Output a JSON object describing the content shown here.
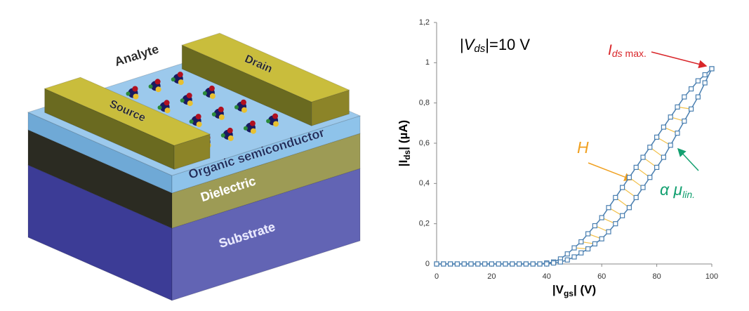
{
  "diagram": {
    "labels": {
      "analyte": "Analyte",
      "drain": "Drain",
      "source": "Source",
      "semiconductor": "Organic semiconductor",
      "dielectric": "Dielectric",
      "substrate": "Substrate"
    }
  },
  "chart_data": {
    "type": "line",
    "marker": "square",
    "x": [
      0,
      2.5,
      5,
      7.5,
      10,
      12.5,
      15,
      17.5,
      20,
      22.5,
      25,
      27.5,
      30,
      32.5,
      35,
      37.5,
      40,
      42.5,
      45,
      47.5,
      50,
      52.5,
      55,
      57.5,
      60,
      62.5,
      65,
      67.5,
      70,
      72.5,
      75,
      77.5,
      80,
      82.5,
      85,
      87.5,
      90,
      92.5,
      95,
      97.5,
      100
    ],
    "series": [
      {
        "color": "#4a7fb0",
        "values": [
          0,
          0,
          0,
          0,
          0,
          0,
          0,
          0,
          0,
          0,
          0,
          0,
          0,
          0,
          0,
          0,
          0.005,
          0.01,
          0.025,
          0.05,
          0.08,
          0.11,
          0.15,
          0.19,
          0.23,
          0.28,
          0.33,
          0.38,
          0.43,
          0.48,
          0.53,
          0.58,
          0.63,
          0.68,
          0.73,
          0.78,
          0.83,
          0.87,
          0.91,
          0.94,
          0.97
        ]
      },
      {
        "color": "#4a7fb0",
        "values": [
          0,
          0,
          0,
          0,
          0,
          0,
          0,
          0,
          0,
          0,
          0,
          0,
          0,
          0,
          0,
          0,
          0,
          0.005,
          0.01,
          0.02,
          0.035,
          0.055,
          0.075,
          0.1,
          0.125,
          0.16,
          0.2,
          0.24,
          0.28,
          0.33,
          0.38,
          0.43,
          0.48,
          0.53,
          0.59,
          0.65,
          0.71,
          0.77,
          0.83,
          0.9,
          0.97
        ]
      }
    ],
    "hatch_color": "#f2c04a",
    "xlim": [
      0,
      100
    ],
    "xticks": [
      0,
      20,
      40,
      60,
      80,
      100
    ],
    "ylim": [
      0,
      1.2
    ],
    "yticks": [
      0,
      {
        "value": 0.2,
        "label": "0,2"
      },
      {
        "value": 0.4,
        "label": "0,4"
      },
      {
        "value": 0.6,
        "label": "0,6"
      },
      {
        "value": 0.8,
        "label": "0,8"
      },
      1,
      {
        "value": 1.2,
        "label": "1,2"
      }
    ],
    "xlabel": {
      "pre": "|V",
      "sub": "gs",
      "post": "| (V)"
    },
    "ylabel": {
      "pre": "|I",
      "sub": "ds",
      "post": "| (µA)"
    },
    "annotations": {
      "vds": {
        "pre": "|",
        "var": "V",
        "sub": "ds",
        "post": "|=10 V"
      },
      "ids_max": {
        "var": "I",
        "sub": "ds",
        "post": " max."
      },
      "hysteresis": "H",
      "mobility": {
        "var": "α μ",
        "sub": "lin."
      }
    }
  }
}
